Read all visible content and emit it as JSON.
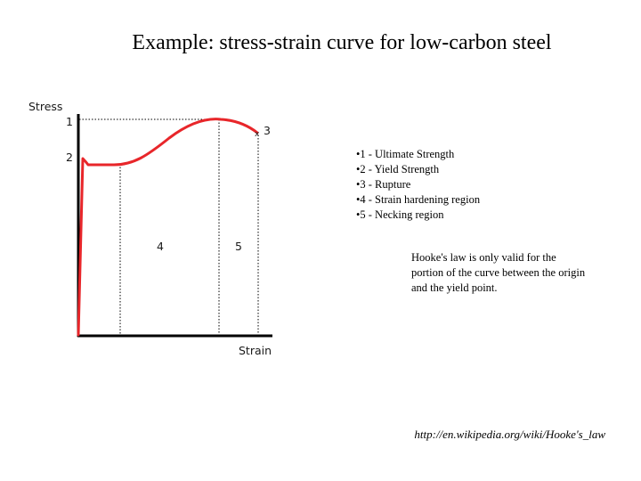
{
  "slide": {
    "title": "Example: stress-strain curve for low-carbon steel"
  },
  "diagram": {
    "y_axis_label": "Stress",
    "x_axis_label": "Strain",
    "point_labels": {
      "ultimate": "1",
      "yield": "2",
      "rupture": "3",
      "hardening_region": "4",
      "necking_region": "5"
    },
    "curve_color": "#e8262a",
    "axis_color": "#000000"
  },
  "legend": {
    "items": [
      "•1 - Ultimate Strength",
      "•2 - Yield Strength",
      "•3 - Rupture",
      "•4 - Strain hardening region",
      "•5 - Necking region"
    ]
  },
  "note": {
    "text": "Hooke's law is only valid for the portion of the curve between the origin and the yield point."
  },
  "source": {
    "url_text": "http://en.wikipedia.org/wiki/Hooke's_law"
  }
}
